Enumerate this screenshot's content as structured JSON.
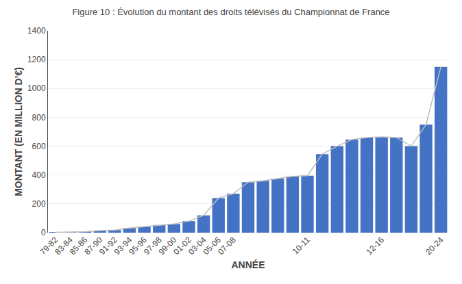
{
  "chart_data": {
    "type": "bar",
    "title": "Figure 10 : Évolution du montant des droits télévisés du Championnat de France",
    "x_label": "ANNÉE",
    "y_label": "MONTANT (EN MILLION D’€)",
    "categories": [
      "79-82",
      "83-84",
      "85-86",
      "87-90",
      "91-92",
      "93-94",
      "95-96",
      "97-98",
      "99-00",
      "01-02",
      "03-04",
      "05-06",
      "07-08",
      null,
      null,
      null,
      null,
      "10-11",
      null,
      null,
      null,
      null,
      "12-16",
      null,
      null,
      null,
      "20-24"
    ],
    "series": [
      {
        "type": "bar",
        "color": "#4472C4",
        "values": [
          2,
          3,
          7,
          14,
          18,
          32,
          42,
          53,
          60,
          80,
          120,
          240,
          270,
          350,
          360,
          375,
          390,
          395,
          545,
          600,
          645,
          660,
          665,
          660,
          600,
          750,
          1150
        ]
      },
      {
        "type": "line",
        "color": "#BEBEBE",
        "values": [
          2,
          3,
          7,
          14,
          18,
          32,
          42,
          53,
          60,
          80,
          120,
          240,
          270,
          350,
          360,
          375,
          390,
          395,
          545,
          600,
          645,
          660,
          665,
          660,
          600,
          750,
          1150
        ]
      }
    ],
    "ylim": [
      0,
      1400
    ],
    "yticks": [
      0,
      200,
      400,
      600,
      800,
      1000,
      1200,
      1400
    ],
    "grid": true
  }
}
